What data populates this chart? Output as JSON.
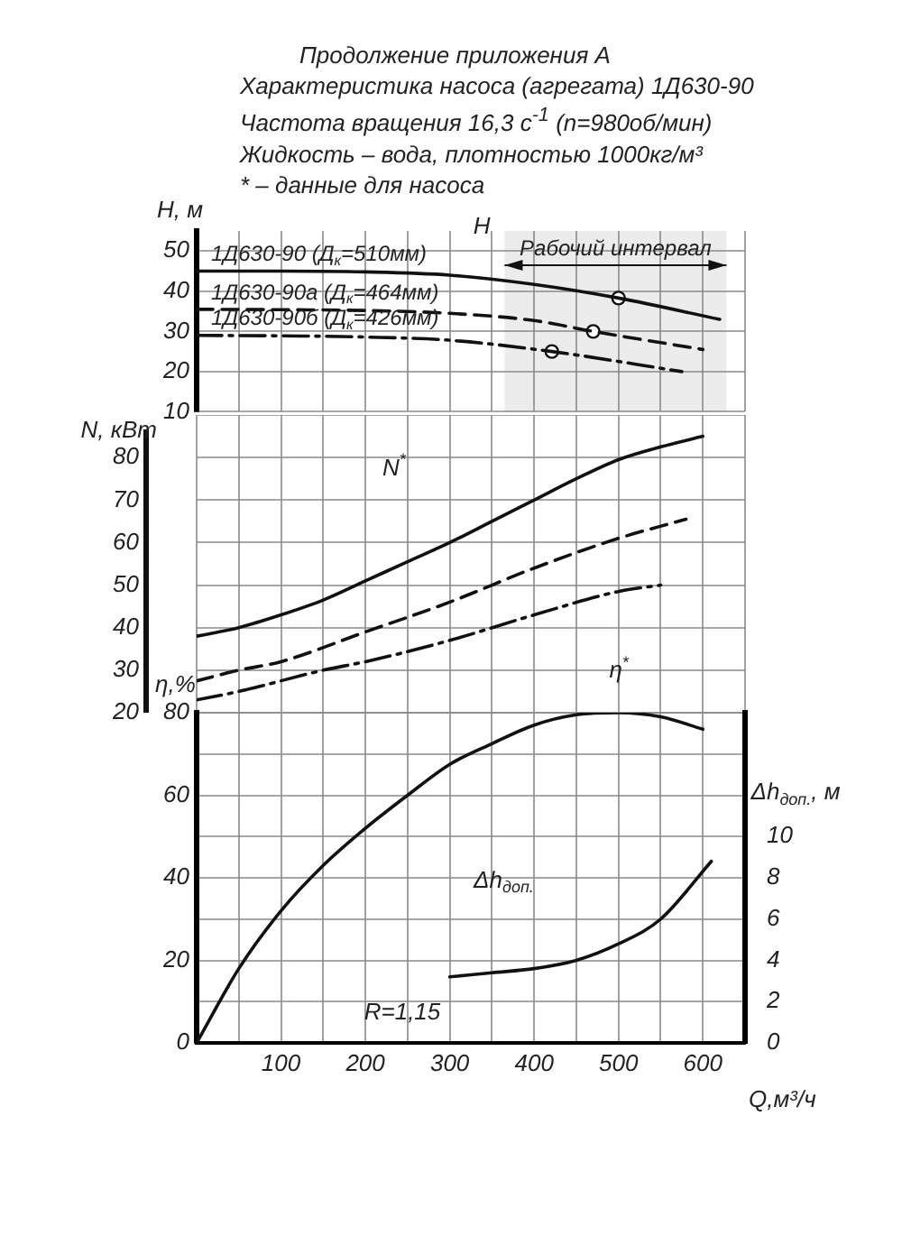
{
  "chart_data": [
    {
      "type": "line",
      "title": "Продолжение приложения А",
      "subtitle": "Характеристика насоса (агрегата) 1Д630-90\nЧастота вращения 16,3 с$^{-1}$ (n=980об/мин)\nЖидкость – вода, плотностью 1000кг/м³\n* – данные для насоса",
      "ylabel": "H, м",
      "xlim": [
        0,
        650
      ],
      "xticks": [
        {
          "value": 0,
          "label": null
        },
        {
          "value": 50,
          "label": null
        },
        100,
        {
          "value": 150,
          "label": null
        },
        200,
        {
          "value": 250,
          "label": null
        },
        300,
        {
          "value": 350,
          "label": null
        },
        400,
        {
          "value": 450,
          "label": null
        },
        500,
        {
          "value": 550,
          "label": null
        },
        600,
        {
          "value": 650,
          "label": null
        }
      ],
      "ylim": [
        10,
        55
      ],
      "yticks": [
        10,
        20,
        30,
        40,
        50
      ],
      "tick_labels": "y",
      "grid": true,
      "marker": "none",
      "series": [
        {
          "name": "1Д630-90 (Д$_{к}$=510мм)",
          "color": "#111111",
          "line_style": "solid",
          "x": [
            0,
            100,
            200,
            300,
            400,
            500,
            620
          ],
          "values": [
            45,
            45,
            44.8,
            44,
            41.7,
            38.3,
            33
          ]
        },
        {
          "name": "1Д630-90а (Д$_{к}$=464мм)",
          "color": "#111111",
          "line_style": "dashed",
          "x": [
            0,
            100,
            200,
            300,
            400,
            470,
            600
          ],
          "values": [
            35.5,
            35.4,
            35.2,
            34.5,
            32.7,
            30,
            25.5
          ]
        },
        {
          "name": "1Д630-90б (Д$_{к}$=426мм)",
          "color": "#111111",
          "line_style": "dashdot",
          "x": [
            0,
            100,
            200,
            300,
            421,
            575
          ],
          "values": [
            29,
            28.9,
            28.6,
            27.8,
            25,
            20
          ]
        },
        {
          "type": "scatter",
          "color": "#111111",
          "marker": "circle",
          "x": [
            500,
            470,
            421
          ],
          "values": [
            38.3,
            30,
            25
          ]
        }
      ],
      "bands": [
        {
          "axis": "x",
          "from": 365,
          "to": 628,
          "label": "Рабочий интервал",
          "color": "#ececec"
        }
      ],
      "annotations": [
        "H"
      ]
    },
    {
      "type": "line",
      "ylabel": "N, кВт",
      "xlim": [
        0,
        650
      ],
      "xticks": [
        {
          "value": 0,
          "label": null
        },
        {
          "value": 50,
          "label": null
        },
        100,
        {
          "value": 150,
          "label": null
        },
        200,
        {
          "value": 250,
          "label": null
        },
        300,
        {
          "value": 350,
          "label": null
        },
        400,
        {
          "value": 450,
          "label": null
        },
        500,
        {
          "value": 550,
          "label": null
        },
        600,
        {
          "value": 650,
          "label": null
        }
      ],
      "ylim": [
        20,
        90
      ],
      "yticks": [
        20,
        30,
        40,
        50,
        60,
        70,
        80,
        {
          "value": 90,
          "label": null
        }
      ],
      "tick_labels": "y",
      "grid": true,
      "marker": "none",
      "series": [
        {
          "color": "#111111",
          "line_style": "solid",
          "x": [
            0,
            50,
            100,
            150,
            200,
            250,
            300,
            350,
            400,
            450,
            500,
            550,
            600
          ],
          "values": [
            38,
            40,
            43,
            46.5,
            51,
            55.5,
            60,
            65,
            70,
            75,
            79.5,
            82.5,
            85
          ]
        },
        {
          "color": "#111111",
          "line_style": "dashed",
          "x": [
            0,
            50,
            100,
            200,
            300,
            400,
            500,
            580
          ],
          "values": [
            27.5,
            30,
            32,
            39,
            46,
            54,
            61,
            65.5
          ]
        },
        {
          "color": "#111111",
          "line_style": "dashdot",
          "x": [
            0,
            50,
            150,
            200,
            300,
            400,
            500,
            550
          ],
          "values": [
            23,
            25,
            30,
            32,
            37,
            43,
            48.5,
            50
          ]
        }
      ],
      "annotations": [
        "N$^{*}$",
        "η$^{*}$"
      ]
    },
    {
      "type": "line",
      "ylabel": "η,%",
      "xlabel": "Q,м³/ч",
      "y2label": "Δh$_{доп.}$, м",
      "xlim": [
        0,
        650
      ],
      "xticks": [
        {
          "value": 0,
          "label": null
        },
        {
          "value": 50,
          "label": null
        },
        100,
        {
          "value": 150,
          "label": null
        },
        200,
        {
          "value": 250,
          "label": null
        },
        300,
        {
          "value": 350,
          "label": null
        },
        400,
        {
          "value": 450,
          "label": null
        },
        500,
        {
          "value": 550,
          "label": null
        },
        600,
        {
          "value": 650,
          "label": null
        }
      ],
      "ylim": [
        0,
        80
      ],
      "yticks": [
        0,
        {
          "value": 10,
          "label": null
        },
        20,
        {
          "value": 30,
          "label": null
        },
        40,
        {
          "value": 50,
          "label": null
        },
        60,
        {
          "value": 70,
          "label": null
        },
        80
      ],
      "y2lim": [
        0,
        16
      ],
      "y2ticks": [
        0,
        2,
        4,
        6,
        8,
        10
      ],
      "grid": true,
      "marker": "none",
      "series": [
        {
          "color": "#111111",
          "line_style": "solid",
          "x": [
            0,
            50,
            100,
            150,
            200,
            250,
            300,
            350,
            400,
            450,
            500,
            550,
            600
          ],
          "values": [
            0,
            18,
            32,
            43,
            52,
            60,
            67.5,
            72.5,
            77,
            79.5,
            80,
            79,
            76
          ]
        },
        {
          "color": "#111111",
          "line_style": "solid",
          "axis": "y2",
          "x": [
            300,
            350,
            400,
            450,
            500,
            550,
            610
          ],
          "values": [
            3.2,
            3.4,
            3.6,
            4,
            4.8,
            6,
            8.8
          ]
        }
      ],
      "annotations": [
        "Δh$_{доп.}$",
        "R=1,15"
      ]
    }
  ]
}
